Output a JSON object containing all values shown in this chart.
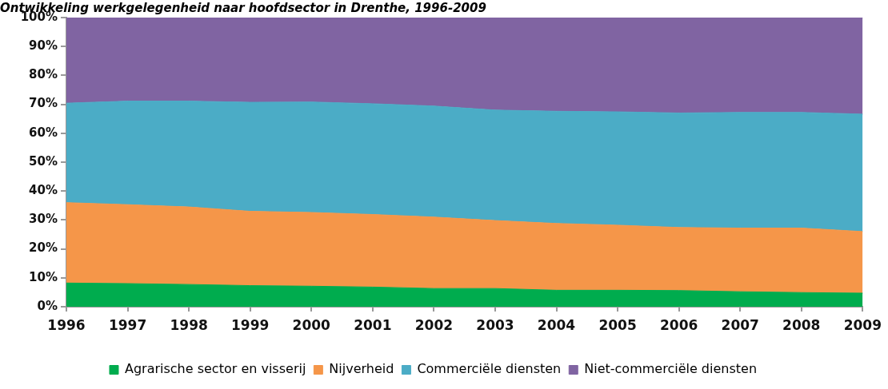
{
  "chart_data": {
    "type": "area",
    "title": "Ontwikkeling werkgelegenheid naar hoofdsector in Drenthe, 1996-2009",
    "categories": [
      "1996",
      "1997",
      "1998",
      "1999",
      "2000",
      "2001",
      "2002",
      "2003",
      "2004",
      "2005",
      "2006",
      "2007",
      "2008",
      "2009"
    ],
    "series": [
      {
        "name": "Agrarische sector en visserij",
        "color": "#00ac4e",
        "values": [
          8.2,
          8.0,
          7.7,
          7.3,
          7.1,
          6.8,
          6.3,
          6.3,
          5.7,
          5.7,
          5.6,
          5.2,
          4.9,
          4.7
        ]
      },
      {
        "name": "Nijverheid",
        "color": "#f59649",
        "values": [
          27.8,
          27.3,
          26.8,
          25.7,
          25.5,
          25.1,
          24.7,
          23.5,
          23.1,
          22.5,
          21.8,
          22.0,
          22.3,
          21.3
        ]
      },
      {
        "name": "Commerciële diensten",
        "color": "#4bacc6",
        "values": [
          34.4,
          35.8,
          36.6,
          37.7,
          38.2,
          38.3,
          38.4,
          38.2,
          38.8,
          39.2,
          39.6,
          40.0,
          40.0,
          40.6
        ]
      },
      {
        "name": "Niet-commerciële diensten",
        "color": "#8064a2",
        "values": [
          29.6,
          28.9,
          28.9,
          29.3,
          29.2,
          29.8,
          30.6,
          32.0,
          32.4,
          32.6,
          33.0,
          32.8,
          32.8,
          33.4
        ]
      }
    ],
    "stacked": true,
    "ylim": [
      0,
      100
    ],
    "yticks": [
      {
        "value": 0,
        "label": "0%"
      },
      {
        "value": 10,
        "label": "10%"
      },
      {
        "value": 20,
        "label": "20%"
      },
      {
        "value": 30,
        "label": "30%"
      },
      {
        "value": 40,
        "label": "40%"
      },
      {
        "value": 50,
        "label": "50%"
      },
      {
        "value": 60,
        "label": "60%"
      },
      {
        "value": 70,
        "label": "70%"
      },
      {
        "value": 80,
        "label": "80%"
      },
      {
        "value": 90,
        "label": "90%"
      },
      {
        "value": 100,
        "label": "100%"
      }
    ],
    "grid": false,
    "legend": "bottom"
  }
}
